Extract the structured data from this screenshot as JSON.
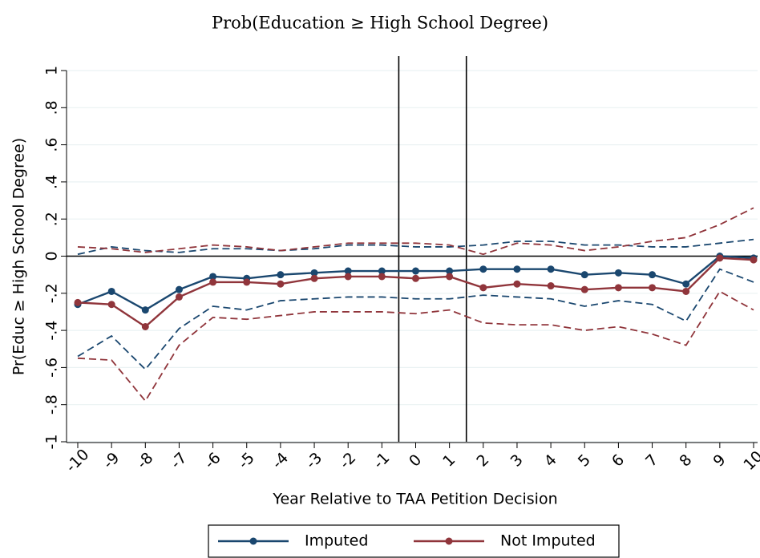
{
  "chart_data": {
    "type": "line",
    "title": "Prob(Education ≥ High School Degree)",
    "y_label": "Pr(Educ ≥ High School Degree)",
    "x_label": "Year Relative to TAA Petition Decision",
    "x": [
      -10,
      -9,
      -8,
      -7,
      -6,
      -5,
      -4,
      -3,
      -2,
      -1,
      0,
      1,
      2,
      3,
      4,
      5,
      6,
      7,
      8,
      9,
      10
    ],
    "xlim": [
      -10,
      10
    ],
    "xticks": [
      -10,
      -9,
      -8,
      -7,
      -6,
      -5,
      -4,
      -3,
      -2,
      -1,
      0,
      1,
      2,
      3,
      4,
      5,
      6,
      7,
      8,
      9,
      10
    ],
    "ylim": [
      -1,
      1
    ],
    "yticks": [
      -1,
      {
        "value": -0.8,
        "label": "-.8"
      },
      {
        "value": -0.6,
        "label": "-.6"
      },
      {
        "value": -0.4,
        "label": "-.4"
      },
      {
        "value": -0.2,
        "label": "-.2"
      },
      0,
      {
        "value": 0.2,
        "label": ".2"
      },
      {
        "value": 0.4,
        "label": ".4"
      },
      {
        "value": 0.6,
        "label": ".6"
      },
      {
        "value": 0.8,
        "label": ".8"
      },
      1
    ],
    "grid": true,
    "hline": 0,
    "vlines": [
      -0.5,
      1.5
    ],
    "series": [
      {
        "name": "Imputed",
        "color": "#1a476f",
        "values": [
          -0.26,
          -0.19,
          -0.29,
          -0.18,
          -0.11,
          -0.12,
          -0.1,
          -0.09,
          -0.08,
          -0.08,
          -0.08,
          -0.08,
          -0.07,
          -0.07,
          -0.07,
          -0.1,
          -0.09,
          -0.1,
          -0.15,
          0.0,
          -0.01
        ],
        "lower": [
          -0.54,
          -0.43,
          -0.61,
          -0.39,
          -0.27,
          -0.29,
          -0.24,
          -0.23,
          -0.22,
          -0.22,
          -0.23,
          -0.23,
          -0.21,
          -0.22,
          -0.23,
          -0.27,
          -0.24,
          -0.26,
          -0.35,
          -0.07,
          -0.14
        ],
        "upper": [
          0.01,
          0.05,
          0.03,
          0.02,
          0.04,
          0.04,
          0.03,
          0.04,
          0.06,
          0.06,
          0.05,
          0.05,
          0.06,
          0.08,
          0.08,
          0.06,
          0.06,
          0.05,
          0.05,
          0.07,
          0.09
        ]
      },
      {
        "name": "Not Imputed",
        "color": "#90353b",
        "values": [
          -0.25,
          -0.26,
          -0.38,
          -0.22,
          -0.14,
          -0.14,
          -0.15,
          -0.12,
          -0.11,
          -0.11,
          -0.12,
          -0.11,
          -0.17,
          -0.15,
          -0.16,
          -0.18,
          -0.17,
          -0.17,
          -0.19,
          -0.01,
          -0.02
        ],
        "lower": [
          -0.55,
          -0.56,
          -0.78,
          -0.48,
          -0.33,
          -0.34,
          -0.32,
          -0.3,
          -0.3,
          -0.3,
          -0.31,
          -0.29,
          -0.36,
          -0.37,
          -0.37,
          -0.4,
          -0.38,
          -0.42,
          -0.48,
          -0.19,
          -0.29
        ],
        "upper": [
          0.05,
          0.04,
          0.02,
          0.04,
          0.06,
          0.05,
          0.03,
          0.05,
          0.07,
          0.07,
          0.07,
          0.06,
          0.01,
          0.07,
          0.06,
          0.03,
          0.05,
          0.08,
          0.1,
          0.17,
          0.26
        ]
      }
    ]
  }
}
